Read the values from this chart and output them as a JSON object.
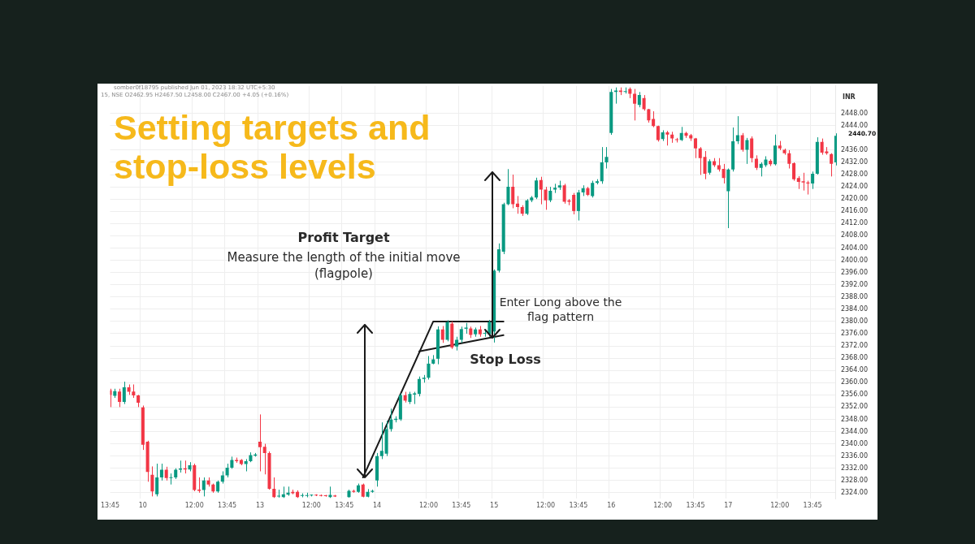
{
  "chart_data": {
    "type": "candlestick",
    "title": "Setting targets and stop-loss levels",
    "ylabel": "INR",
    "annotations": [
      "somber0f18795 published Jun 01, 2023 18:32 UTC+5:30",
      "15, NSE O2462.95 H2467.50 L2458.00 C2467.00 +4.05 (+0.16%)",
      "Profit Target",
      "Measure the length of the initial move (flagpole)",
      "Enter Long above the flag pattern",
      "Stop Loss",
      "2440.70"
    ],
    "series": [
      {
        "type": "line",
        "color": "#1a1a1a",
        "values": [
          null,
          null,
          null,
          null,
          null,
          null,
          null,
          null,
          null,
          null,
          null,
          null,
          null,
          null,
          null,
          null,
          null,
          null,
          null,
          null,
          null,
          null,
          null,
          null,
          null,
          null,
          null,
          null,
          null,
          null,
          null,
          null,
          null,
          null,
          null,
          null,
          null,
          null,
          null,
          null,
          null,
          null,
          null,
          null,
          null,
          null,
          null,
          null,
          null,
          null,
          null,
          null,
          null,
          null,
          2329,
          null,
          null,
          null,
          null,
          null,
          null,
          null,
          null,
          null,
          null,
          null,
          null,
          null,
          null,
          2380,
          null,
          null,
          null,
          null,
          null,
          null,
          null,
          null,
          null,
          null,
          null,
          null,
          null,
          null,
          2380,
          null,
          null,
          null,
          null,
          null,
          null,
          null,
          null,
          null,
          null,
          null,
          null,
          null,
          null,
          null,
          null,
          null,
          null,
          null,
          null,
          null,
          null,
          null,
          null,
          null,
          null,
          null,
          null,
          null,
          null,
          null,
          null,
          null,
          null,
          null,
          null,
          null,
          null,
          null,
          null,
          null,
          null,
          null,
          null,
          null,
          null,
          null,
          null,
          null,
          null,
          null,
          null,
          null,
          null,
          null,
          null,
          null,
          null,
          null,
          null,
          null,
          null,
          null,
          null,
          null,
          null,
          null,
          null,
          null,
          null,
          null
        ]
      },
      {
        "type": "line",
        "color": "#1a1a1a",
        "values": [
          null,
          null,
          null,
          null,
          null,
          null,
          null,
          null,
          null,
          null,
          null,
          null,
          null,
          null,
          null,
          null,
          null,
          null,
          null,
          null,
          null,
          null,
          null,
          null,
          null,
          null,
          null,
          null,
          null,
          null,
          null,
          null,
          null,
          null,
          null,
          null,
          null,
          null,
          null,
          null,
          null,
          null,
          null,
          null,
          null,
          null,
          null,
          null,
          null,
          null,
          null,
          null,
          null,
          null,
          null,
          null,
          null,
          null,
          null,
          null,
          null,
          null,
          null,
          null,
          null,
          null,
          2370.2,
          null,
          null,
          null,
          null,
          null,
          null,
          null,
          null,
          null,
          null,
          null,
          null,
          null,
          null,
          null,
          null,
          null,
          2375.5,
          null,
          null,
          null,
          null,
          null,
          null,
          null,
          null,
          null,
          null,
          null,
          null,
          null,
          null,
          null,
          null,
          null,
          null,
          null,
          null,
          null,
          null,
          null,
          null,
          null,
          null,
          null,
          null,
          null,
          null,
          null,
          null,
          null,
          null,
          null,
          null,
          null,
          null,
          null,
          null,
          null,
          null,
          null,
          null,
          null,
          null,
          null,
          null,
          null,
          null,
          null,
          null,
          null,
          null,
          null,
          null,
          null,
          null,
          null,
          null,
          null,
          null,
          null,
          null,
          null,
          null,
          null,
          null,
          null,
          null,
          null
        ]
      }
    ],
    "categories": [
      "13:45",
      null,
      null,
      null,
      null,
      null,
      null,
      "10",
      null,
      null,
      null,
      null,
      null,
      null,
      null,
      null,
      null,
      null,
      "12:00",
      null,
      null,
      null,
      null,
      null,
      null,
      "13:45",
      null,
      null,
      null,
      null,
      null,
      null,
      "13",
      null,
      null,
      null,
      null,
      null,
      null,
      null,
      null,
      null,
      null,
      "12:00",
      null,
      null,
      null,
      null,
      null,
      null,
      "13:45",
      null,
      null,
      null,
      null,
      null,
      null,
      "14",
      null,
      null,
      null,
      null,
      null,
      null,
      null,
      null,
      null,
      null,
      "12:00",
      null,
      null,
      null,
      null,
      null,
      null,
      "13:45",
      null,
      null,
      null,
      null,
      null,
      null,
      "15",
      null,
      null,
      null,
      null,
      null,
      null,
      null,
      null,
      null,
      null,
      "12:00",
      null,
      null,
      null,
      null,
      null,
      null,
      "13:45",
      null,
      null,
      null,
      null,
      null,
      null,
      "16",
      null,
      null,
      null,
      null,
      null,
      null,
      null,
      null,
      null,
      null,
      "12:00",
      null,
      null,
      null,
      null,
      null,
      null,
      "13:45",
      null,
      null,
      null,
      null,
      null,
      null,
      "17",
      null,
      null,
      null,
      null,
      null,
      null,
      null,
      null,
      null,
      null,
      "12:00",
      null,
      null,
      null,
      null,
      null,
      null,
      "13:45",
      null,
      null,
      null,
      null,
      null
    ],
    "ohlc": [
      [
        2357.5,
        2358,
        2352,
        2356
      ],
      [
        2355.7,
        2358,
        2355,
        2357.2
      ],
      [
        2357.1,
        2358,
        2352,
        2353.7
      ],
      [
        2353.7,
        2360.3,
        2353,
        2358.5
      ],
      [
        2358.5,
        2359.4,
        2356,
        2357
      ],
      [
        2357.1,
        2359.4,
        2355,
        2355.8
      ],
      [
        2355.8,
        2356,
        2352,
        2353.4
      ],
      [
        2351.9,
        2352.5,
        2338,
        2339.7
      ],
      [
        2340.7,
        2341,
        2327.6,
        2330.8
      ],
      [
        2329.9,
        2332.6,
        2322.8,
        2324.4
      ],
      [
        2323.5,
        2333.5,
        2322.8,
        2329
      ],
      [
        2329,
        2333.5,
        2328,
        2331.5
      ],
      [
        2331.5,
        2332.5,
        2328,
        2328.8
      ],
      [
        2328.8,
        2330.3,
        2326.7,
        2329
      ],
      [
        2329,
        2332,
        2328.5,
        2331.5
      ],
      [
        2331.5,
        2334.5,
        2330.6,
        2331.9
      ],
      [
        2332,
        2334.5,
        2330.3,
        2331.6
      ],
      [
        2331.6,
        2334,
        2331,
        2333
      ],
      [
        2333,
        2333.5,
        2324.5,
        2324.9
      ],
      [
        2325,
        2329,
        2324,
        2324.6
      ],
      [
        2324.9,
        2329,
        2322.8,
        2328
      ],
      [
        2328,
        2329,
        2326,
        2326.7
      ],
      [
        2326.7,
        2327,
        2324,
        2324.4
      ],
      [
        2324.4,
        2328,
        2324,
        2327.6
      ],
      [
        2327.6,
        2331,
        2327,
        2329.7
      ],
      [
        2329.7,
        2333.5,
        2329,
        2332.2
      ],
      [
        2332.2,
        2335.8,
        2331.8,
        2334.7
      ],
      [
        2334.7,
        2335.5,
        2333.8,
        2334.3
      ],
      [
        2334.7,
        2335,
        2333,
        2333.4
      ],
      [
        2333.4,
        2335,
        2331,
        2334.3
      ],
      [
        2334.3,
        2337.2,
        2334,
        2336.3
      ],
      [
        2336.1,
        2337,
        2335.8,
        2336.5
      ],
      [
        2340.7,
        2349.6,
        2331,
        2338.9
      ],
      [
        2339,
        2340,
        2330,
        2337
      ],
      [
        2337,
        2337.5,
        2325,
        2325.3
      ],
      [
        2325.3,
        2329,
        2322.3,
        2322.6
      ],
      [
        2322.8,
        2325,
        2322.4,
        2322.9
      ],
      [
        2322.6,
        2326,
        2322.3,
        2323.5
      ],
      [
        2323.4,
        2326,
        2323,
        2324
      ],
      [
        2324.3,
        2325,
        2323.5,
        2323.8
      ],
      [
        2324.3,
        2324.8,
        2322.3,
        2322.6
      ],
      [
        2323,
        2323.8,
        2322.5,
        2323.1
      ],
      [
        2323,
        2324,
        2322.5,
        2323.2
      ],
      [
        2323.1,
        2323.4,
        2322.8,
        2323.2
      ],
      [
        2323.2,
        2323.5,
        2322.9,
        2323.1
      ],
      [
        2323.1,
        2323.4,
        2322.8,
        2323
      ],
      [
        2323,
        2323.3,
        2322.7,
        2322.9
      ],
      [
        2322.6,
        2326,
        2322.3,
        2323.3
      ],
      [
        2323.1,
        2323.3,
        2322.6,
        2322.8
      ],
      null,
      null,
      [
        2322.6,
        2325,
        2322.4,
        2324.6
      ],
      [
        2324.6,
        2325,
        2324,
        2324.3
      ],
      [
        2324.3,
        2327,
        2324,
        2326.4
      ],
      [
        2326.7,
        2327,
        2322.5,
        2322.7
      ],
      [
        2322.7,
        2325.2,
        2322.5,
        2324.3
      ],
      [
        2324.3,
        2325,
        2324,
        2324.6
      ],
      [
        2328,
        2337,
        2326,
        2336
      ],
      [
        2336,
        2347,
        2335,
        2337.7
      ],
      [
        2336.8,
        2347.5,
        2336,
        2344.8
      ],
      [
        2344.8,
        2351.5,
        2344,
        2347.9
      ],
      [
        2347.8,
        2349,
        2347,
        2348.2
      ],
      [
        2348,
        2356.5,
        2347.5,
        2355.9
      ],
      [
        2355.9,
        2357,
        2353.5,
        2354.1
      ],
      [
        2353.7,
        2357,
        2353,
        2356.3
      ],
      [
        2356.1,
        2357,
        2353,
        2356.5
      ],
      [
        2356.3,
        2362,
        2355.5,
        2361.2
      ],
      [
        2361.2,
        2362.5,
        2360,
        2361.6
      ],
      [
        2361.6,
        2368.7,
        2361,
        2366.2
      ],
      [
        2366.2,
        2369,
        2366,
        2367.6
      ],
      [
        2367.8,
        2378.4,
        2366,
        2377.4
      ],
      [
        2377.4,
        2378.5,
        2373,
        2374
      ],
      [
        2374,
        2380.4,
        2373.5,
        2379.8
      ],
      [
        2379.3,
        2380,
        2371,
        2371.5
      ],
      [
        2371.8,
        2375,
        2370.5,
        2374
      ],
      [
        2374,
        2378.3,
        2373,
        2377.5
      ],
      [
        2377.6,
        2379.5,
        2376,
        2378
      ],
      [
        2377.7,
        2378.3,
        2374.6,
        2375.6
      ],
      [
        2375.8,
        2378,
        2375,
        2377.4
      ],
      [
        2377.4,
        2378.5,
        2375,
        2375.8
      ],
      [
        2376,
        2377,
        2375,
        2376.1
      ],
      [
        2375.8,
        2380.5,
        2375,
        2379.8
      ],
      [
        2376.7,
        2397,
        2373.1,
        2396.6
      ],
      [
        2396.6,
        2405.5,
        2396,
        2403.6
      ],
      [
        2402.8,
        2418.8,
        2402,
        2418.3
      ],
      [
        2418.3,
        2429.8,
        2418,
        2424
      ],
      [
        2424,
        2428,
        2417,
        2418.3
      ],
      [
        2418.5,
        2421,
        2415.2,
        2417.4
      ],
      [
        2417.4,
        2418,
        2414.5,
        2415.2
      ],
      [
        2415.2,
        2420,
        2414.8,
        2419.6
      ],
      [
        2419.6,
        2421,
        2419,
        2420.5
      ],
      [
        2420.5,
        2427,
        2420,
        2426.1
      ],
      [
        2426.2,
        2427.3,
        2418.3,
        2423.1
      ],
      [
        2423.1,
        2424,
        2416.5,
        2419.6
      ],
      [
        2419.6,
        2424,
        2419,
        2422.7
      ],
      [
        2423.1,
        2425,
        2422,
        2423.7
      ],
      [
        2423.8,
        2426,
        2423,
        2424.5
      ],
      [
        2424.5,
        2425,
        2418.5,
        2419.1
      ],
      [
        2419.6,
        2420,
        2418,
        2419.1
      ],
      [
        2421.4,
        2422,
        2415,
        2416.1
      ],
      [
        2416.1,
        2423,
        2413,
        2422.2
      ],
      [
        2422.2,
        2424.5,
        2421,
        2423.6
      ],
      [
        2423.6,
        2424,
        2421,
        2421.4
      ],
      [
        2421,
        2426,
        2420.5,
        2425.3
      ],
      [
        2425.3,
        2426.5,
        2424.8,
        2425.8
      ],
      [
        2425.8,
        2437,
        2425,
        2432
      ],
      [
        2432,
        2437,
        2430,
        2433.8
      ],
      [
        2441.6,
        2456,
        2441,
        2455
      ],
      [
        2455,
        2456.5,
        2451.2,
        2455.5
      ],
      [
        2455.5,
        2456.5,
        2454,
        2455
      ],
      [
        2455,
        2456.5,
        2454.5,
        2455.3
      ],
      [
        2456,
        2456.5,
        2453,
        2454.4
      ],
      [
        2454.4,
        2456,
        2445.7,
        2451.2
      ],
      [
        2450.8,
        2455,
        2450,
        2454
      ],
      [
        2453,
        2454,
        2448.9,
        2449.4
      ],
      [
        2449.4,
        2449.5,
        2445,
        2445.7
      ],
      [
        2446.2,
        2448.7,
        2443.5,
        2443.9
      ],
      [
        2443.9,
        2444,
        2438.8,
        2439.3
      ],
      [
        2439.6,
        2442.5,
        2439,
        2441.8
      ],
      [
        2441.8,
        2442.3,
        2437.5,
        2441.1
      ],
      [
        2441.1,
        2442,
        2438.4,
        2439.8
      ],
      [
        2439.5,
        2440,
        2438.5,
        2439.3
      ],
      [
        2439.3,
        2443.6,
        2439,
        2441.6
      ],
      [
        2441.6,
        2442,
        2440,
        2440.7
      ],
      [
        2440.9,
        2441.3,
        2439,
        2439.8
      ],
      [
        2439.8,
        2440,
        2433.4,
        2436.6
      ],
      [
        2436.6,
        2437,
        2427.9,
        2433.4
      ],
      [
        2433.8,
        2435.7,
        2426.5,
        2428.3
      ],
      [
        2428.6,
        2433,
        2428,
        2432.4
      ],
      [
        2432.4,
        2433.4,
        2430.5,
        2431.1
      ],
      [
        2431.1,
        2433.4,
        2429,
        2429.7
      ],
      [
        2429.9,
        2431.5,
        2425.1,
        2426.9
      ],
      [
        2422.6,
        2430,
        2410.5,
        2429.7
      ],
      [
        2429.7,
        2443.4,
        2429,
        2438.9
      ],
      [
        2438.9,
        2447.1,
        2438,
        2440.9
      ],
      [
        2440.9,
        2441.6,
        2435.5,
        2436.1
      ],
      [
        2436.1,
        2440,
        2431.5,
        2439.3
      ],
      [
        2439.8,
        2440.5,
        2432,
        2433.4
      ],
      [
        2433.2,
        2434.3,
        2429.5,
        2430.2
      ],
      [
        2430.2,
        2432,
        2427.4,
        2431.5
      ],
      [
        2431.1,
        2434,
        2430.5,
        2432.9
      ],
      [
        2432.5,
        2433,
        2430.8,
        2431.4
      ],
      [
        2431.4,
        2441.1,
        2431,
        2437.5
      ],
      [
        2437.5,
        2439,
        2436,
        2436.6
      ],
      [
        2436.1,
        2436.5,
        2434.5,
        2435
      ],
      [
        2435,
        2436,
        2430,
        2431.5
      ],
      [
        2431.7,
        2432,
        2426,
        2426.5
      ],
      [
        2426.9,
        2427.5,
        2423.3,
        2425.6
      ],
      [
        2425.8,
        2428.6,
        2422.8,
        2425.4
      ],
      [
        2425.4,
        2426,
        2421.5,
        2425.1
      ],
      [
        2425.1,
        2429,
        2423.3,
        2428.3
      ],
      [
        2428.3,
        2440.2,
        2428,
        2438.7
      ],
      [
        2438.7,
        2439.8,
        2434.5,
        2435.2
      ],
      [
        2435.6,
        2437,
        2434.5,
        2435
      ],
      [
        2434.7,
        2435,
        2427.4,
        2431.5
      ],
      [
        2432,
        2441.5,
        2431,
        2440.7
      ]
    ],
    "ylim": [
      2322,
      2457
    ],
    "yticks": [
      {
        "value": 2324,
        "label": "2324.00"
      },
      {
        "value": 2328,
        "label": "2328.00"
      },
      {
        "value": 2332,
        "label": "2332.00"
      },
      {
        "value": 2336,
        "label": "2336.00"
      },
      {
        "value": 2340,
        "label": "2340.00"
      },
      {
        "value": 2344,
        "label": "2344.00"
      },
      {
        "value": 2348,
        "label": "2348.00"
      },
      {
        "value": 2352,
        "label": "2352.00"
      },
      {
        "value": 2356,
        "label": "2356.00"
      },
      {
        "value": 2360,
        "label": "2360.00"
      },
      {
        "value": 2364,
        "label": "2364.00"
      },
      {
        "value": 2368,
        "label": "2368.00"
      },
      {
        "value": 2372,
        "label": "2372.00"
      },
      {
        "value": 2376,
        "label": "2376.00"
      },
      {
        "value": 2380,
        "label": "2380.00"
      },
      {
        "value": 2384,
        "label": "2384.00"
      },
      {
        "value": 2388,
        "label": "2388.00"
      },
      {
        "value": 2392,
        "label": "2392.00"
      },
      {
        "value": 2396,
        "label": "2396.00"
      },
      {
        "value": 2400,
        "label": "2400.00"
      },
      {
        "value": 2404,
        "label": "2404.00"
      },
      {
        "value": 2408,
        "label": "2408.00"
      },
      {
        "value": 2412,
        "label": "2412.00"
      },
      {
        "value": 2416,
        "label": "2416.00"
      },
      {
        "value": 2420,
        "label": "2420.00"
      },
      {
        "value": 2424,
        "label": "2424.00"
      },
      {
        "value": 2428,
        "label": "2428.00"
      },
      {
        "value": 2432,
        "label": "2432.00"
      },
      {
        "value": 2436,
        "label": "2436.00"
      },
      {
        "value": 2444,
        "label": "2444.00"
      },
      {
        "value": 2448,
        "label": "2448.00"
      }
    ],
    "grid": true
  }
}
